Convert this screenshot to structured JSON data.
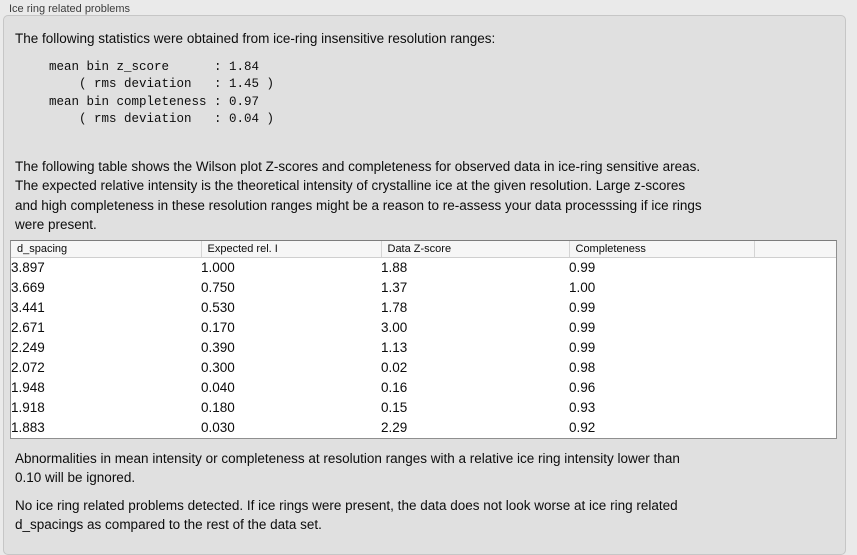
{
  "panel": {
    "title": "Ice ring related problems",
    "intro": "The following statistics were obtained from ice-ring insensitive resolution ranges:",
    "stats_text": "mean bin z_score      : 1.84\n    ( rms deviation   : 1.45 )\nmean bin completeness : 0.97\n    ( rms deviation   : 0.04 )",
    "stats": {
      "mean_bin_z_score": "1.84",
      "z_score_rms_deviation": "1.45",
      "mean_bin_completeness": "0.97",
      "completeness_rms_deviation": "0.04"
    },
    "table_description": "The following table shows the Wilson plot Z-scores and completeness for observed data in ice-ring sensitive areas.\nThe expected relative intensity is the theoretical intensity of crystalline ice at the given resolution. Large z-scores\nand high completeness in these resolution ranges might be a reason to re-assess your data processsing if ice rings\nwere present.",
    "ignore_note": "Abnormalities in mean intensity or completeness at resolution ranges with a relative ice ring intensity lower than\n0.10 will be ignored.",
    "conclusion": "No ice ring related problems detected. If ice rings were present, the data does not look worse at ice ring related\nd_spacings as compared to the rest of the data set."
  },
  "table": {
    "columns": [
      "d_spacing",
      "Expected rel. I",
      "Data Z-score",
      "Completeness",
      ""
    ],
    "rows": [
      [
        "3.897",
        "1.000",
        "1.88",
        "0.99"
      ],
      [
        "3.669",
        "0.750",
        "1.37",
        "1.00"
      ],
      [
        "3.441",
        "0.530",
        "1.78",
        "0.99"
      ],
      [
        "2.671",
        "0.170",
        "3.00",
        "0.99"
      ],
      [
        "2.249",
        "0.390",
        "1.13",
        "0.99"
      ],
      [
        "2.072",
        "0.300",
        "0.02",
        "0.98"
      ],
      [
        "1.948",
        "0.040",
        "0.16",
        "0.96"
      ],
      [
        "1.918",
        "0.180",
        "0.15",
        "0.93"
      ],
      [
        "1.883",
        "0.030",
        "2.29",
        "0.92"
      ]
    ]
  }
}
